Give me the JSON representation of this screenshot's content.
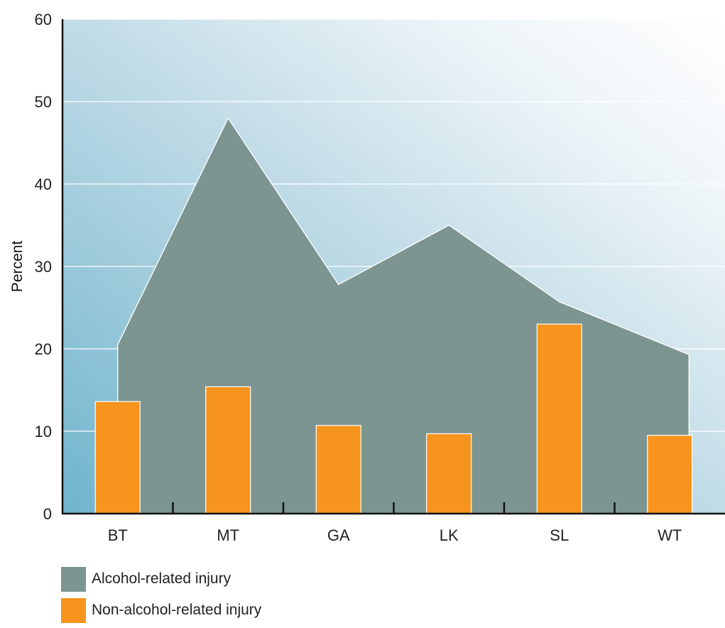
{
  "chart_data": {
    "type": "bar",
    "ylabel": "Percent",
    "ylim": [
      0,
      60
    ],
    "yticks": [
      0,
      10,
      20,
      30,
      40,
      50,
      60
    ],
    "categories": [
      "BT",
      "MT",
      "GA",
      "LK",
      "SL",
      "WT"
    ],
    "grid": true,
    "legend_position": "bottom-left",
    "series": [
      {
        "name": "Alcohol-related injury",
        "render": "area",
        "color": "#7c9591",
        "values": [
          20.5,
          48,
          27.8,
          35,
          25.7,
          19.3
        ]
      },
      {
        "name": "Non-alcohol-related injury",
        "render": "bar",
        "color": "#f7941d",
        "values": [
          13.6,
          15.4,
          10.7,
          9.7,
          23,
          9.5
        ]
      }
    ]
  },
  "legend": [
    {
      "label": "Alcohol-related injury",
      "color": "#7c9591"
    },
    {
      "label": "Non-alcohol-related injury",
      "color": "#f7941d"
    }
  ]
}
